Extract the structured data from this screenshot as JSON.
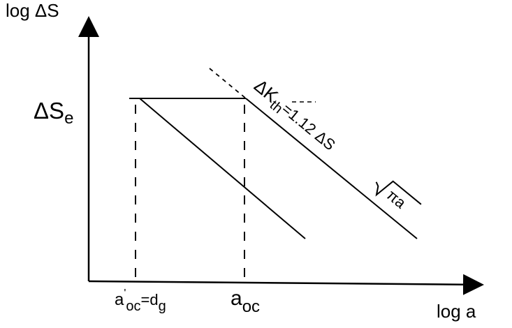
{
  "axes": {
    "y_label": "log ΔS",
    "x_label": "log a"
  },
  "labels": {
    "endurance_limit": {
      "main": "ΔS",
      "sub": "e"
    },
    "a_oc_prime": {
      "main": "a",
      "sup": "'",
      "sub": "oc",
      "rest": "=d",
      "sub2": "g"
    },
    "a_oc": {
      "main": "a",
      "sub": "oc"
    },
    "threshold": {
      "main": "ΔK",
      "sub": "th",
      "rest": "=1.12 ΔS ",
      "radicand": "πa"
    }
  },
  "colors": {
    "ink": "#000000",
    "background": "#ffffff"
  }
}
